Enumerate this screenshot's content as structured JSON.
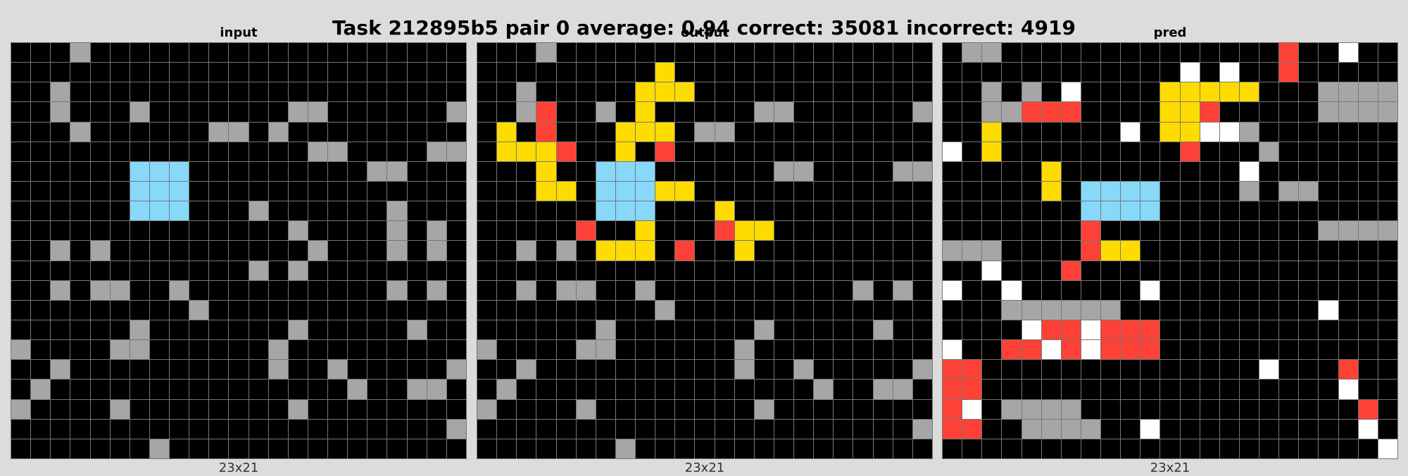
{
  "title": "Task 212895b5 pair 0 average: 0.94 correct: 35081 incorrect: 4919",
  "palette": {
    "0": "#000000",
    "1": "#a6a6a6",
    "2": "#87d8f9",
    "3": "#fe4136",
    "4": "#fedc00",
    "5": "#ffffff"
  },
  "panels": [
    {
      "label": "input",
      "size": "23x21",
      "grid": [
        "00010000000000000000000",
        "00000000000000000000000",
        "00100000000000000000000",
        "00100010000000110000001",
        "00010000001101000000000",
        "00000000000000011000011",
        "00000022200000000011000",
        "00000022200000000000000",
        "00000022200010000001000",
        "00000000000000100001010",
        "00101000000000010001010",
        "00000000000010100000000",
        "00101100100000000001010",
        "00000000010000000000000",
        "00000010000000100000100",
        "10000110000001000000000",
        "00100000000001001000001",
        "01000000000000000100110",
        "10000100000000100000000",
        "00000000000000000000001",
        "00000001000000000000000"
      ]
    },
    {
      "label": "output",
      "size": "23x21",
      "grid": [
        "00010000000000000000000",
        "00000000040000000000000",
        "00100000444000000000000",
        "00130010400000110000001",
        "04030004440110000000000",
        "04443004030000000000000",
        "00040022200000011000011",
        "00044022244000000000000",
        "00000022200040000000000",
        "00000300400034400000000",
        "00101044403004000000000",
        "00000000000000000000000",
        "00101100100000000001010",
        "00000000010000000000000",
        "00000010000000100000100",
        "10000110000001000000000",
        "00100000000001001000001",
        "01000000000000000100110",
        "10000100000000100000000",
        "00000000000000000000001",
        "00000001000000000000000"
      ]
    },
    {
      "label": "pred",
      "size": "23x21",
      "grid": [
        "01100000000000000300500",
        "00000000000050500300000",
        "00101050000444440001111",
        "00113330000443000001111",
        "00400000050445510000000",
        "50400000000030001000000",
        "00000400000000050000000",
        "00000402222000010110000",
        "00000002222000000000000",
        "00000003000000000001111",
        "11100003440000000000000",
        "00500030000000000000000",
        "50050000005000000000000",
        "00011111100000000005000",
        "00005335333000000000000",
        "50033535333000000000000",
        "33000000000000005000300",
        "33000000000000000000500",
        "35011110000000000000030",
        "33001111005000000000050",
        "00000000000000000000005"
      ]
    }
  ]
}
